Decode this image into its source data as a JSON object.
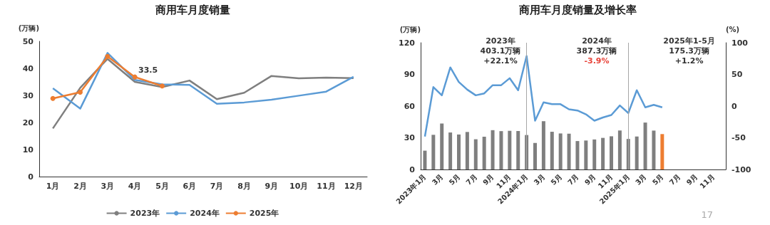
{
  "chart_data": [
    {
      "type": "line",
      "title": "商用车月度销量",
      "ylabel": "(万辆)",
      "categories": [
        "1月",
        "2月",
        "3月",
        "4月",
        "5月",
        "6月",
        "7月",
        "8月",
        "9月",
        "10月",
        "11月",
        "12月"
      ],
      "ylim": [
        0,
        50
      ],
      "yticks": [
        0,
        10,
        20,
        30,
        40,
        50
      ],
      "grid": false,
      "legend": "bottom",
      "line_style": "solid",
      "series": [
        {
          "name": "2023年",
          "color": "#7f7f7f",
          "marker": "none",
          "values": [
            17.8,
            32.8,
            43.5,
            35.0,
            33.1,
            35.5,
            28.6,
            31.0,
            37.2,
            36.3,
            36.6,
            36.4
          ]
        },
        {
          "name": "2024年",
          "color": "#5b9bd5",
          "marker": "none",
          "values": [
            32.6,
            25.1,
            45.7,
            35.7,
            34.1,
            33.9,
            26.9,
            27.4,
            28.4,
            29.9,
            31.4,
            36.9
          ]
        },
        {
          "name": "2025年",
          "color": "#ed7d31",
          "marker": "circle",
          "values": [
            28.9,
            31.2,
            44.4,
            36.8,
            33.5,
            null,
            null,
            null,
            null,
            null,
            null,
            null
          ],
          "value_labels": [
            null,
            null,
            null,
            null,
            "33.5",
            null,
            null,
            null,
            null,
            null,
            null,
            null
          ]
        }
      ]
    },
    {
      "type": "bar",
      "title": "商用车月度销量及增长率",
      "ylabel": "(万辆)",
      "y2label": "(%)",
      "categories": [
        "2023年1月",
        null,
        "3月",
        null,
        "5月",
        null,
        "7月",
        null,
        "9月",
        null,
        "11月",
        null,
        "2024年1月",
        null,
        "3月",
        null,
        "5月",
        null,
        "7月",
        null,
        "9月",
        null,
        "11月",
        null,
        "2025年1月",
        null,
        "3月",
        null,
        "5月",
        null,
        "7月",
        null,
        "9月",
        null,
        "11月",
        null
      ],
      "ylim": [
        0,
        120
      ],
      "yticks": [
        0,
        30,
        60,
        90,
        120
      ],
      "y2lim": [
        -100,
        100
      ],
      "y2ticks": [
        -100,
        -50,
        0,
        50,
        100
      ],
      "grid": false,
      "legend": false,
      "series": [
        {
          "colors": [
            "#7f7f7f",
            "#7f7f7f",
            "#7f7f7f",
            "#7f7f7f",
            "#7f7f7f",
            "#7f7f7f",
            "#7f7f7f",
            "#7f7f7f",
            "#7f7f7f",
            "#7f7f7f",
            "#7f7f7f",
            "#7f7f7f",
            "#7f7f7f",
            "#7f7f7f",
            "#7f7f7f",
            "#7f7f7f",
            "#7f7f7f",
            "#7f7f7f",
            "#7f7f7f",
            "#7f7f7f",
            "#7f7f7f",
            "#7f7f7f",
            "#7f7f7f",
            "#7f7f7f",
            "#7f7f7f",
            "#7f7f7f",
            "#7f7f7f",
            "#7f7f7f",
            "#ed7d31",
            null,
            null,
            null,
            null,
            null,
            null,
            null
          ],
          "values": [
            17.8,
            32.8,
            43.5,
            35.0,
            33.1,
            35.5,
            28.6,
            31.0,
            37.2,
            36.3,
            36.6,
            36.4,
            32.6,
            25.1,
            45.7,
            35.7,
            34.1,
            33.9,
            26.9,
            27.4,
            28.4,
            29.9,
            31.4,
            36.9,
            28.9,
            31.2,
            44.4,
            36.8,
            33.5,
            null,
            null,
            null,
            null,
            null,
            null,
            null
          ]
        },
        {
          "type": "line",
          "axis": "y2",
          "color": "#5b9bd5",
          "marker": "none",
          "values": [
            -48,
            30,
            17,
            61,
            38,
            26,
            17,
            20,
            33,
            33,
            44,
            25,
            79,
            -23,
            6,
            3,
            3,
            -5,
            -7,
            -13,
            -23,
            -18,
            -14,
            1,
            -11,
            25,
            -2,
            2,
            -2,
            null,
            null,
            null,
            null,
            null,
            null,
            null
          ]
        }
      ],
      "ref_lines": [
        {
          "axis": "x",
          "value": "2024年1月",
          "color": "#a6a6a6"
        },
        {
          "axis": "x",
          "value": "2025年1月",
          "color": "#a6a6a6"
        }
      ],
      "annotations": [
        "2023年\n403.1万辆\n+22.1%",
        "2024年\n387.3万辆\n-3.9%",
        "2025年1-5月\n175.3万辆\n+1.2%",
        "17"
      ]
    }
  ]
}
